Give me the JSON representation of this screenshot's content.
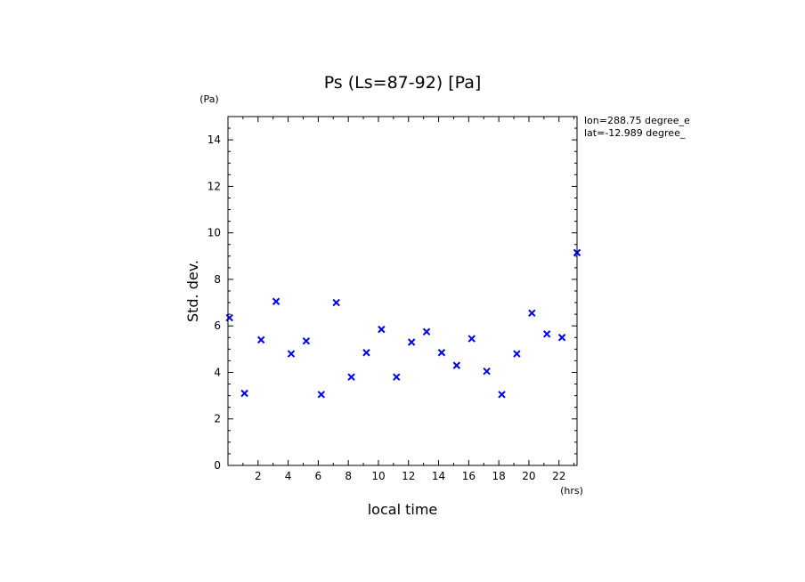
{
  "chart_data": {
    "type": "scatter",
    "title": "Ps (Ls=87-92) [Pa]",
    "xlabel": "local time",
    "ylabel": "Std. dev.",
    "x_unit": "(hrs)",
    "y_unit": "(Pa)",
    "annotations": [
      "lon=288.75 degree_e",
      "lat=-12.989 degree_"
    ],
    "xlim": [
      0,
      23.2
    ],
    "ylim": [
      0,
      15
    ],
    "x_ticks": [
      2,
      4,
      6,
      8,
      10,
      12,
      14,
      16,
      18,
      20,
      22
    ],
    "y_ticks": [
      0,
      2,
      4,
      6,
      8,
      10,
      12,
      14
    ],
    "x_tick_labels": [
      "2",
      "4",
      "6",
      "8",
      "10",
      "12",
      "14",
      "16",
      "18",
      "20",
      "22"
    ],
    "y_tick_labels": [
      "0",
      "2",
      "4",
      "6",
      "8",
      "10",
      "12",
      "14"
    ],
    "grid": false,
    "marker": "x",
    "marker_color": "#0000ee",
    "x": [
      0.1,
      1.1,
      2.2,
      3.2,
      4.2,
      5.2,
      6.2,
      7.2,
      8.2,
      9.2,
      10.2,
      11.2,
      12.2,
      13.2,
      14.2,
      15.2,
      16.2,
      17.2,
      18.2,
      19.2,
      20.2,
      21.2,
      22.2,
      23.2
    ],
    "values": [
      6.35,
      3.1,
      5.4,
      7.05,
      4.8,
      5.35,
      3.05,
      7.0,
      3.8,
      4.85,
      5.85,
      3.8,
      5.3,
      5.75,
      4.85,
      4.3,
      5.45,
      4.05,
      3.05,
      4.8,
      6.55,
      5.65,
      5.5,
      9.15
    ]
  }
}
